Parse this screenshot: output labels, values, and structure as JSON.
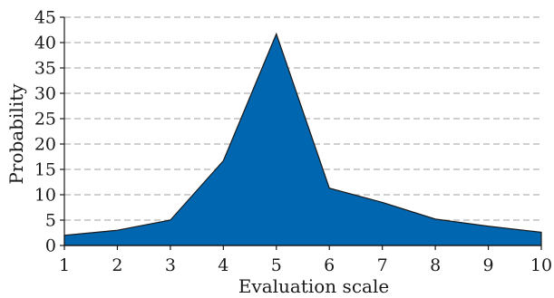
{
  "colors": {
    "area_fill": "#0066B0",
    "grid": "#B5B5B5",
    "axis": "#1A1A1A"
  },
  "chart_data": {
    "type": "area",
    "xlabel": "Evaluation scale",
    "ylabel": "Probability",
    "x": [
      1,
      2,
      3,
      4,
      5,
      6,
      7,
      8,
      9,
      10
    ],
    "series": [
      {
        "values": [
          2,
          3,
          5,
          16.7,
          41.7,
          11.3,
          8.5,
          5.2,
          3.8,
          2.6
        ]
      }
    ],
    "xlim": [
      1,
      10
    ],
    "ylim": [
      0,
      45
    ],
    "xticks": [
      1,
      2,
      3,
      4,
      5,
      6,
      7,
      8,
      9,
      10
    ],
    "yticks": [
      0,
      5,
      10,
      15,
      20,
      25,
      30,
      35,
      40,
      45
    ],
    "grid": "horizontal dashed"
  }
}
